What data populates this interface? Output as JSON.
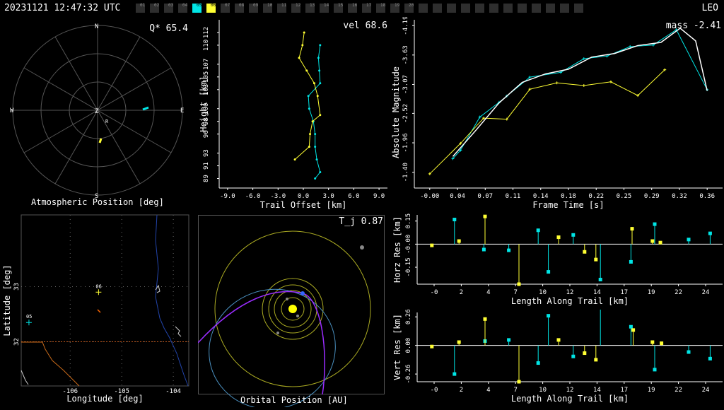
{
  "header": {
    "timestamp": "20231121 12:47:32 UTC",
    "network": "LEO",
    "stations": [
      {
        "id": "01",
        "state": "off"
      },
      {
        "id": "02",
        "state": "off"
      },
      {
        "id": "03",
        "state": "off"
      },
      {
        "id": "04",
        "state": "off"
      },
      {
        "id": "05",
        "state": "cyan"
      },
      {
        "id": "06",
        "state": "yellow"
      },
      {
        "id": "07",
        "state": "off"
      },
      {
        "id": "08",
        "state": "off"
      },
      {
        "id": "09",
        "state": "off"
      },
      {
        "id": "10",
        "state": "off"
      },
      {
        "id": "11",
        "state": "off"
      },
      {
        "id": "12",
        "state": "off"
      },
      {
        "id": "13",
        "state": "off"
      },
      {
        "id": "14",
        "state": "off"
      },
      {
        "id": "15",
        "state": "off"
      },
      {
        "id": "16",
        "state": "off"
      },
      {
        "id": "17",
        "state": "off"
      },
      {
        "id": "18",
        "state": "off"
      },
      {
        "id": "19",
        "state": "off"
      },
      {
        "id": "20",
        "state": "off"
      },
      {
        "id": "",
        "state": "off"
      },
      {
        "id": "",
        "state": "off"
      },
      {
        "id": "",
        "state": "off"
      },
      {
        "id": "",
        "state": "off"
      },
      {
        "id": "",
        "state": "off"
      },
      {
        "id": "",
        "state": "off"
      },
      {
        "id": "",
        "state": "off"
      },
      {
        "id": "",
        "state": "off"
      },
      {
        "id": "",
        "state": "off"
      },
      {
        "id": "",
        "state": "off"
      },
      {
        "id": "",
        "state": "off"
      },
      {
        "id": "",
        "state": "off"
      }
    ]
  },
  "colors": {
    "station05": "#00e5e5",
    "station06": "#ffff33",
    "grid": "#555555",
    "axis": "#ffffff"
  },
  "atmospheric": {
    "label": "Atmospheric Position [deg]",
    "stat": "Q* 65.4",
    "compass": {
      "n": "N",
      "s": "S",
      "e": "E",
      "w": "W",
      "z": "Z",
      "r": "R"
    }
  },
  "orbital": {
    "label": "Orbital Position [AU]",
    "stat": "T_j 0.87"
  },
  "chart_data": [
    {
      "id": "height_offset",
      "type": "line",
      "stat": "vel 68.6",
      "xlabel": "Trail Offset [km]",
      "ylabel": "Height [km]",
      "xlim": [
        -10,
        10
      ],
      "ylim": [
        87.5,
        114
      ],
      "xticks": [
        "-9.0",
        "-6.0",
        "-3.0",
        "0.0",
        "3.0",
        "6.0",
        "9.0"
      ],
      "xtick_values": [
        -9,
        -6,
        -3,
        0,
        3,
        6,
        9
      ],
      "yticks": [
        "89",
        "91",
        "93",
        "96",
        "98",
        "100",
        "103",
        "105",
        "107",
        "110",
        "112"
      ],
      "ytick_values": [
        89,
        91,
        93,
        96,
        98,
        100,
        103,
        105,
        107,
        110,
        112
      ],
      "series": [
        {
          "color": "#00e5e5",
          "points": [
            [
              2,
              110
            ],
            [
              1.8,
              108
            ],
            [
              1.9,
              106
            ],
            [
              2,
              104
            ],
            [
              0.6,
              102
            ],
            [
              0.7,
              100
            ],
            [
              1.2,
              98
            ],
            [
              1.4,
              96
            ],
            [
              1.4,
              94
            ],
            [
              1.6,
              92
            ],
            [
              2,
              90
            ],
            [
              1.4,
              89
            ]
          ]
        },
        {
          "color": "#ffff33",
          "points": [
            [
              0.1,
              112
            ],
            [
              -0.1,
              110
            ],
            [
              -0.5,
              108
            ],
            [
              0.4,
              106
            ],
            [
              1.3,
              104
            ],
            [
              1.7,
              102
            ],
            [
              2,
              99
            ],
            [
              1.1,
              98
            ],
            [
              0.8,
              96
            ],
            [
              0.7,
              94
            ],
            [
              -1,
              92
            ]
          ]
        }
      ]
    },
    {
      "id": "light_curve",
      "type": "line",
      "stat": "mass -2.41",
      "xlabel": "Frame Time [s]",
      "ylabel": "Absolute Magnitude",
      "xlim": [
        -0.02,
        0.38
      ],
      "ylim": [
        -1.1,
        -4.3
      ],
      "xticks": [
        "-0.00",
        "0.04",
        "0.07",
        "0.11",
        "0.14",
        "0.18",
        "0.22",
        "0.25",
        "0.29",
        "0.32",
        "0.36"
      ],
      "xtick_values": [
        0,
        0.036,
        0.072,
        0.108,
        0.144,
        0.18,
        0.216,
        0.252,
        0.288,
        0.324,
        0.36
      ],
      "yticks": [
        "-1.40",
        "-1.96",
        "-2.52",
        "-3.07",
        "-3.63",
        "-4.19"
      ],
      "ytick_values": [
        -1.4,
        -1.96,
        -2.52,
        -3.07,
        -3.63,
        -4.19
      ],
      "series": [
        {
          "color": "#00e5e5",
          "points": [
            [
              0.03,
              -1.66
            ],
            [
              0.04,
              -1.82
            ],
            [
              0.065,
              -2.45
            ],
            [
              0.09,
              -2.73
            ],
            [
              0.1,
              -2.85
            ],
            [
              0.13,
              -3.21
            ],
            [
              0.17,
              -3.3
            ],
            [
              0.2,
              -3.56
            ],
            [
              0.23,
              -3.61
            ],
            [
              0.26,
              -3.79
            ],
            [
              0.29,
              -3.82
            ],
            [
              0.32,
              -4.11
            ],
            [
              0.36,
              -2.97
            ]
          ]
        },
        {
          "color": "#ffff33",
          "points": [
            [
              0,
              -1.37
            ],
            [
              0.04,
              -1.95
            ],
            [
              0.07,
              -2.43
            ],
            [
              0.1,
              -2.41
            ],
            [
              0.13,
              -2.98
            ],
            [
              0.165,
              -3.1
            ],
            [
              0.2,
              -3.05
            ],
            [
              0.235,
              -3.12
            ],
            [
              0.27,
              -2.86
            ],
            [
              0.305,
              -3.35
            ]
          ]
        },
        {
          "color": "#ffffff",
          "points": [
            [
              0.03,
              -1.7
            ],
            [
              0.06,
              -2.2
            ],
            [
              0.09,
              -2.72
            ],
            [
              0.12,
              -3.11
            ],
            [
              0.15,
              -3.27
            ],
            [
              0.18,
              -3.36
            ],
            [
              0.21,
              -3.59
            ],
            [
              0.24,
              -3.66
            ],
            [
              0.27,
              -3.81
            ],
            [
              0.3,
              -3.87
            ],
            [
              0.325,
              -4.14
            ],
            [
              0.345,
              -3.9
            ],
            [
              0.36,
              -2.95
            ]
          ]
        }
      ]
    },
    {
      "id": "horz_res",
      "type": "scatter",
      "xlabel": "Length Along Trail [km]",
      "ylabel": "Horz Res [km]",
      "xlim": [
        -1.5,
        25.5
      ],
      "ylim": [
        -0.26,
        0.19
      ],
      "xticks": [
        "-0",
        "2",
        "4",
        "7",
        "10",
        "12",
        "14",
        "17",
        "19",
        "22",
        "24"
      ],
      "xtick_values": [
        0,
        2.4,
        4.8,
        7.2,
        9.6,
        12,
        14.4,
        16.8,
        19.2,
        21.6,
        24
      ],
      "yticks": [
        "0.15",
        "-0.00",
        "-0.15"
      ],
      "ytick_values": [
        0.15,
        0,
        -0.15
      ],
      "series": [
        {
          "name": "05",
          "color": "#00e5e5",
          "x": [
            1.8,
            4.4,
            6.6,
            9.2,
            10.1,
            12.3,
            14.7,
            17.4,
            19.5,
            22.5,
            24.4
          ],
          "y": [
            0.16,
            -0.035,
            -0.04,
            0.09,
            -0.18,
            0.06,
            -0.23,
            -0.115,
            0.13,
            0.03,
            0.07
          ]
        },
        {
          "name": "06",
          "color": "#ffff33",
          "x": [
            -0.2,
            2.2,
            4.5,
            7.5,
            11,
            13.3,
            14.3,
            17.5,
            19.3,
            20
          ],
          "y": [
            -0.008,
            0.02,
            0.18,
            -0.26,
            0.045,
            -0.05,
            -0.1,
            0.1,
            0.02,
            0.01
          ]
        }
      ]
    },
    {
      "id": "vert_res",
      "type": "scatter",
      "xlabel": "Length Along Trail [km]",
      "ylabel": "Vert Res [km]",
      "xlim": [
        -1.5,
        25.5
      ],
      "ylim": [
        -0.33,
        0.3
      ],
      "xticks": [
        "-0",
        "2",
        "4",
        "7",
        "10",
        "12",
        "14",
        "17",
        "19",
        "22",
        "24"
      ],
      "xtick_values": [
        0,
        2.4,
        4.8,
        7.2,
        9.6,
        12,
        14.4,
        16.8,
        19.2,
        21.6,
        24
      ],
      "yticks": [
        "0.26",
        "0.00",
        "-0.26"
      ],
      "ytick_values": [
        0.26,
        0,
        -0.26
      ],
      "series": [
        {
          "name": "05",
          "color": "#00e5e5",
          "x": [
            1.8,
            4.5,
            6.6,
            9.2,
            10.1,
            12.3,
            14.7,
            17.4,
            19.5,
            22.5,
            24.4
          ],
          "y": [
            -0.26,
            0.04,
            0.05,
            -0.16,
            0.27,
            -0.1,
            0.38,
            0.17,
            -0.22,
            -0.06,
            -0.12
          ]
        },
        {
          "name": "06",
          "color": "#ffff33",
          "x": [
            -0.2,
            2.2,
            4.5,
            7.5,
            11,
            13.3,
            14.3,
            17.6,
            19.3,
            20.1
          ],
          "y": [
            -0.01,
            0.03,
            0.24,
            -0.33,
            0.05,
            -0.07,
            -0.13,
            0.14,
            0.03,
            0.02
          ]
        }
      ]
    },
    {
      "id": "latlon",
      "type": "scatter",
      "xlabel": "Longitude [deg]",
      "ylabel": "Latitude [deg]",
      "xticks": [
        "-106",
        "-105",
        "-104"
      ],
      "xtick_values": [
        -106,
        -105,
        -104
      ],
      "yticks": [
        "32",
        "33"
      ],
      "ytick_values": [
        32,
        33
      ],
      "xlim": [
        -106.95,
        -103.7
      ],
      "ylim": [
        31.2,
        34.3
      ],
      "stations": [
        {
          "name": "05",
          "color": "#00e5e5",
          "lon": -106.8,
          "lat": 32.35
        },
        {
          "name": "06",
          "color": "#ffff33",
          "lon": -105.45,
          "lat": 32.9
        }
      ]
    }
  ]
}
